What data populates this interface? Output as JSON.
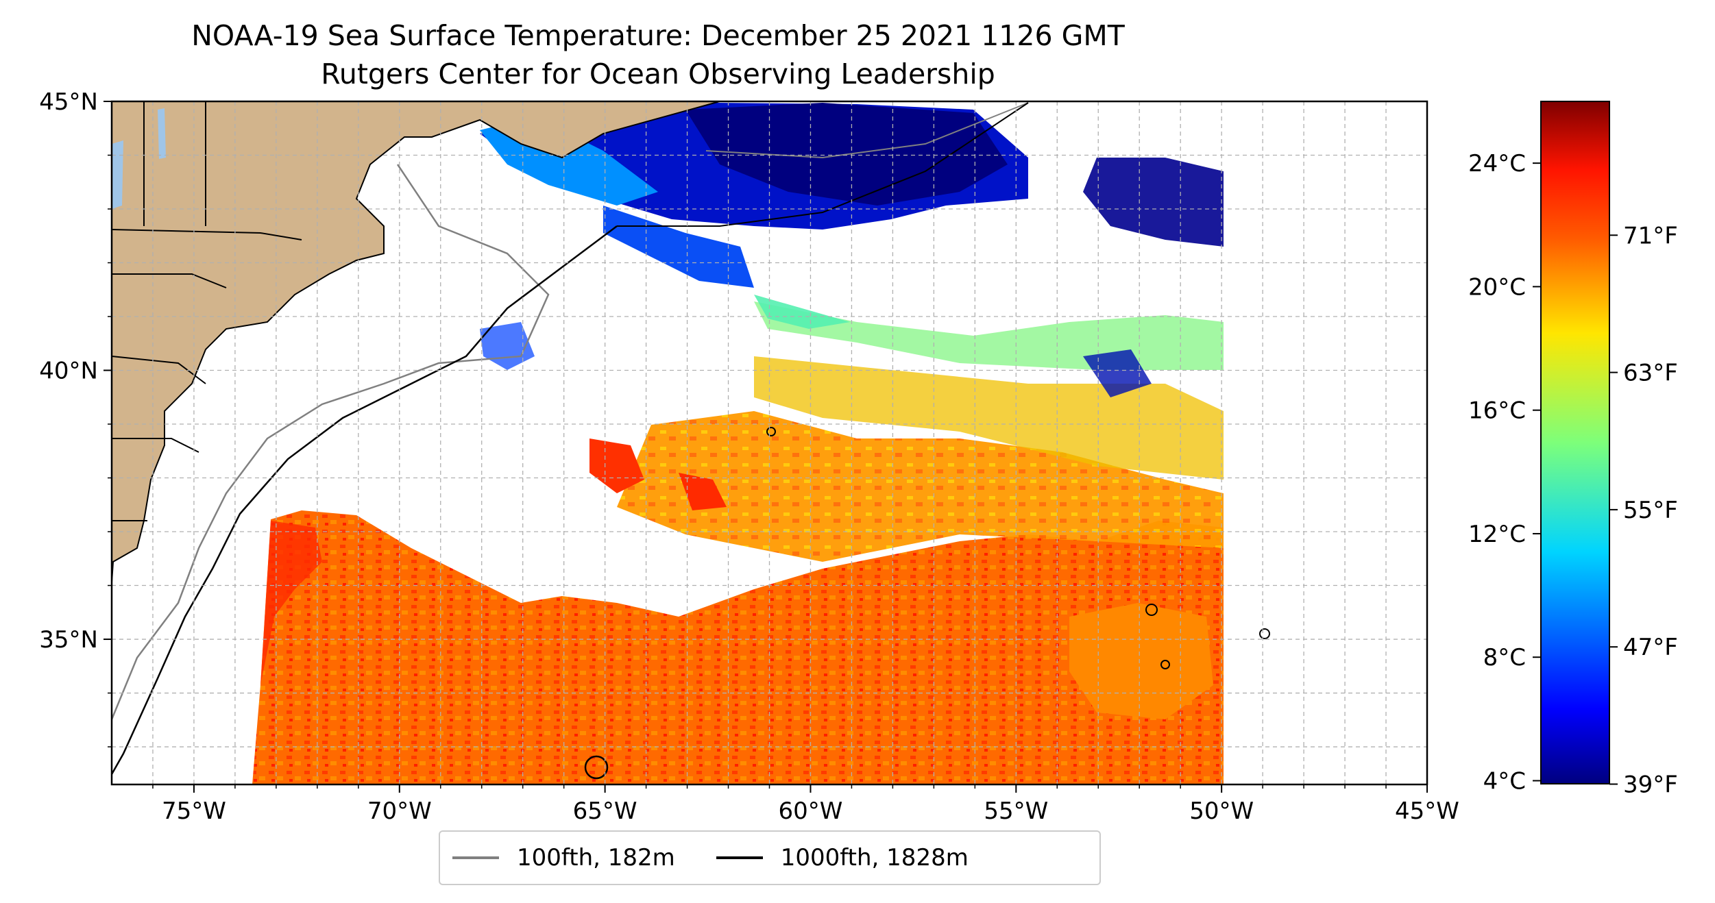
{
  "title": "NOAA-19 Sea Surface Temperature: December 25 2021 1126 GMT",
  "subtitle": "Rutgers Center for Ocean Observing Leadership",
  "map": {
    "lon_range": [
      -77,
      -45
    ],
    "lat_range": [
      32.3,
      45
    ],
    "lat_ticks": [
      {
        "value": 45,
        "label": "45°N"
      },
      {
        "value": 40,
        "label": "40°N"
      },
      {
        "value": 35,
        "label": "35°N"
      }
    ],
    "lon_ticks": [
      {
        "value": -75,
        "label": "75°W"
      },
      {
        "value": -70,
        "label": "70°W"
      },
      {
        "value": -65,
        "label": "65°W"
      },
      {
        "value": -60,
        "label": "60°W"
      },
      {
        "value": -55,
        "label": "55°W"
      },
      {
        "value": -50,
        "label": "50°W"
      },
      {
        "value": -45,
        "label": "45°W"
      }
    ],
    "grid": true,
    "land_color": "#d2b48c",
    "water_body_color": "#9fc5e8",
    "isobath_100_color": "#808080",
    "isobath_1000_color": "#000000",
    "data_edge_lon": -50
  },
  "colorbar": {
    "colormap": "jet",
    "celsius_ticks": [
      {
        "value": 24,
        "label": "24°C"
      },
      {
        "value": 20,
        "label": "20°C"
      },
      {
        "value": 16,
        "label": "16°C"
      },
      {
        "value": 12,
        "label": "12°C"
      },
      {
        "value": 8,
        "label": "8°C"
      },
      {
        "value": 4,
        "label": "4°C"
      }
    ],
    "fahrenheit_ticks": [
      {
        "value": 71,
        "label": "71°F"
      },
      {
        "value": 63,
        "label": "63°F"
      },
      {
        "value": 55,
        "label": "55°F"
      },
      {
        "value": 47,
        "label": "47°F"
      },
      {
        "value": 39,
        "label": "39°F"
      }
    ],
    "range_c": [
      3.9,
      26
    ]
  },
  "legend": {
    "items": [
      {
        "label": "100fth, 182m",
        "color": "#808080"
      },
      {
        "label": "1000fth, 1828m",
        "color": "#000000"
      }
    ]
  }
}
